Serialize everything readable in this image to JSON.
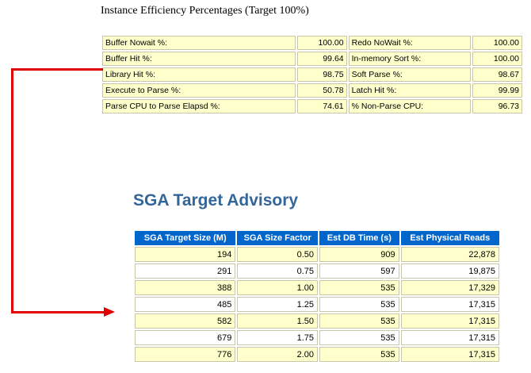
{
  "efficiency": {
    "title": "Instance Efficiency Percentages (Target 100%)",
    "rows": [
      {
        "label1": "Buffer Nowait %:",
        "value1": "100.00",
        "label2": "Redo NoWait %:",
        "value2": "100.00"
      },
      {
        "label1": "Buffer Hit %:",
        "value1": "99.64",
        "label2": "In-memory Sort %:",
        "value2": "100.00"
      },
      {
        "label1": "Library Hit %:",
        "value1": "98.75",
        "label2": "Soft Parse %:",
        "value2": "98.67"
      },
      {
        "label1": "Execute to Parse %:",
        "value1": "50.78",
        "label2": "Latch Hit %:",
        "value2": "99.99"
      },
      {
        "label1": "Parse CPU to Parse Elapsd %:",
        "value1": "74.61",
        "label2": "% Non-Parse CPU:",
        "value2": "96.73"
      }
    ]
  },
  "sga_advisory": {
    "title": "SGA Target Advisory",
    "headers": [
      "SGA Target Size (M)",
      "SGA Size Factor",
      "Est DB Time (s)",
      "Est Physical Reads"
    ],
    "rows": [
      [
        "194",
        "0.50",
        "909",
        "22,878"
      ],
      [
        "291",
        "0.75",
        "597",
        "19,875"
      ],
      [
        "388",
        "1.00",
        "535",
        "17,329"
      ],
      [
        "485",
        "1.25",
        "535",
        "17,315"
      ],
      [
        "582",
        "1.50",
        "535",
        "17,315"
      ],
      [
        "679",
        "1.75",
        "535",
        "17,315"
      ],
      [
        "776",
        "2.00",
        "535",
        "17,315"
      ]
    ]
  },
  "colors": {
    "arrow": "#e00000",
    "header_bg": "#0066cc",
    "title_color": "#336699",
    "cell_bg": "#ffffcc"
  }
}
